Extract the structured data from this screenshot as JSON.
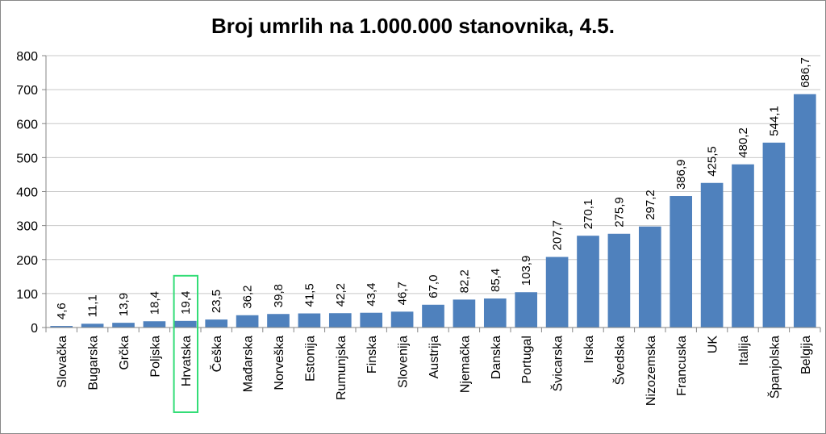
{
  "chart_data": {
    "type": "bar",
    "title": "Broj umrlih na 1.000.000 stanovnika, 4.5.",
    "xlabel": "",
    "ylabel": "",
    "ylim": [
      0,
      800
    ],
    "yticks": [
      "0",
      "100",
      "200",
      "300",
      "400",
      "500",
      "600",
      "700",
      "800"
    ],
    "grid": true,
    "legend": "none",
    "bar_color": "#4F81BD",
    "highlight_color": "#33DD77",
    "highlight_category": "Hrvatska",
    "categories": [
      "Slovačka",
      "Bugarska",
      "Grčka",
      "Poljska",
      "Hrvatska",
      "Češka",
      "Mađarska",
      "Norveška",
      "Estonija",
      "Rumunjska",
      "Finska",
      "Slovenija",
      "Austrija",
      "Njemačka",
      "Danska",
      "Portugal",
      "Švicarska",
      "Irska",
      "Švedska",
      "Nizozemska",
      "Francuska",
      "UK",
      "Italija",
      "Španjolska",
      "Belgija"
    ],
    "values": [
      4.6,
      11.1,
      13.9,
      18.4,
      19.4,
      23.5,
      36.2,
      39.8,
      41.5,
      42.2,
      43.4,
      46.7,
      67.0,
      82.2,
      85.4,
      103.9,
      207.7,
      270.1,
      275.9,
      297.2,
      386.9,
      425.5,
      480.2,
      544.1,
      686.7
    ],
    "data_labels": [
      "4,6",
      "11,1",
      "13,9",
      "18,4",
      "19,4",
      "23,5",
      "36,2",
      "39,8",
      "41,5",
      "42,2",
      "43,4",
      "46,7",
      "67,0",
      "82,2",
      "85,4",
      "103,9",
      "207,7",
      "270,1",
      "275,9",
      "297,2",
      "386,9",
      "425,5",
      "480,2",
      "544,1",
      "686,7"
    ]
  }
}
